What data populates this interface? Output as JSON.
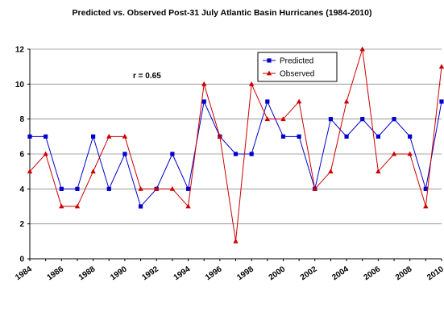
{
  "chart_data": {
    "type": "line",
    "title": "Predicted vs. Observed Post-31 July Atlantic Basin Hurricanes (1984-2010)",
    "xlabel": "",
    "ylabel": "",
    "x": [
      1984,
      1985,
      1986,
      1987,
      1988,
      1989,
      1990,
      1991,
      1992,
      1993,
      1994,
      1995,
      1996,
      1997,
      1998,
      1999,
      2000,
      2001,
      2002,
      2003,
      2004,
      2005,
      2006,
      2007,
      2008,
      2009,
      2010
    ],
    "xtick_labels": [
      "1984",
      "1986",
      "1988",
      "1990",
      "1992",
      "1994",
      "1996",
      "1998",
      "2000",
      "2002",
      "2004",
      "2006",
      "2008",
      "2010"
    ],
    "ylim": [
      0,
      12
    ],
    "yticks": [
      0,
      2,
      4,
      6,
      8,
      10,
      12
    ],
    "grid": "horizontal",
    "legend_position": "top-center",
    "annotation": "r = 0.65",
    "series": [
      {
        "name": "Predicted",
        "color": "#0000cc",
        "marker": "square",
        "values": [
          7,
          7,
          4,
          4,
          7,
          4,
          6,
          3,
          4,
          6,
          4,
          9,
          7,
          6,
          6,
          9,
          7,
          7,
          4,
          8,
          7,
          8,
          7,
          8,
          7,
          4,
          9
        ]
      },
      {
        "name": "Observed",
        "color": "#cc0000",
        "marker": "triangle",
        "values": [
          5,
          6,
          3,
          3,
          5,
          7,
          7,
          4,
          4,
          4,
          3,
          10,
          7,
          1,
          10,
          8,
          8,
          9,
          4,
          5,
          9,
          12,
          5,
          6,
          6,
          3,
          11
        ]
      }
    ]
  }
}
